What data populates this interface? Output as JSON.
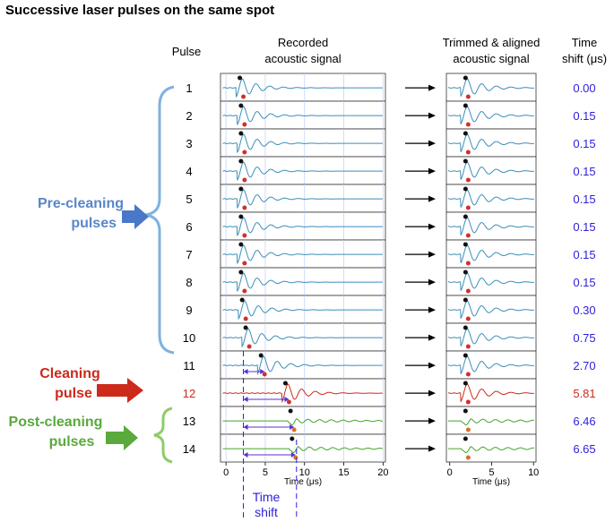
{
  "title": "Successive laser pulses on the same spot",
  "headers": {
    "pulse": "Pulse",
    "recorded_1": "Recorded",
    "recorded_2": "acoustic signal",
    "trimmed_1": "Trimmed & aligned",
    "trimmed_2": "acoustic signal",
    "shift_1": "Time",
    "shift_2": "shift (μs)"
  },
  "groups": {
    "pre_1": "Pre-cleaning",
    "pre_2": "pulses",
    "clean_1": "Cleaning",
    "clean_2": "pulse",
    "post_1": "Post-cleaning",
    "post_2": "pulses"
  },
  "time_shift_label_1": "Time",
  "time_shift_label_2": "shift",
  "axes": {
    "left_xlabel": "Time (μs)",
    "left_ticks": [
      "0",
      "5",
      "10",
      "15",
      "20"
    ],
    "left_xlim": [
      -0.7,
      20.3
    ],
    "right_xlabel": "Time (μs)",
    "right_ticks": [
      "0",
      "5",
      "10"
    ],
    "right_xlim": [
      -0.4,
      10.3
    ]
  },
  "colors": {
    "pre": "#3b8db9",
    "cleaning": "#cc2a1a",
    "post": "#42a52a",
    "shift": "#2a1edc",
    "label_pre": "#5a86c8",
    "label_clean": "#cc2a1a",
    "label_post": "#5aa93c",
    "peak_dark": "#111111",
    "peak_red": "#d03030",
    "peak_orange": "#d5702a"
  },
  "chart_data": {
    "type": "line",
    "xlabel": "Time (μs)",
    "pulses": [
      {
        "label": "1",
        "group": "pre",
        "shift": "0.00",
        "peak_time": 2.1
      },
      {
        "label": "2",
        "group": "pre",
        "shift": "0.15",
        "peak_time": 2.25
      },
      {
        "label": "3",
        "group": "pre",
        "shift": "0.15",
        "peak_time": 2.25
      },
      {
        "label": "4",
        "group": "pre",
        "shift": "0.15",
        "peak_time": 2.25
      },
      {
        "label": "5",
        "group": "pre",
        "shift": "0.15",
        "peak_time": 2.25
      },
      {
        "label": "6",
        "group": "pre",
        "shift": "0.15",
        "peak_time": 2.25
      },
      {
        "label": "7",
        "group": "pre",
        "shift": "0.15",
        "peak_time": 2.25
      },
      {
        "label": "8",
        "group": "pre",
        "shift": "0.15",
        "peak_time": 2.25
      },
      {
        "label": "9",
        "group": "pre",
        "shift": "0.30",
        "peak_time": 2.4
      },
      {
        "label": "10",
        "group": "pre",
        "shift": "0.75",
        "peak_time": 2.85
      },
      {
        "label": "11",
        "group": "pre",
        "shift": "2.70",
        "peak_time": 4.8
      },
      {
        "label": "12",
        "group": "cleaning",
        "shift": "5.81",
        "peak_time": 7.91
      },
      {
        "label": "13",
        "group": "post",
        "shift": "6.46",
        "peak_time": 8.56
      },
      {
        "label": "14",
        "group": "post",
        "shift": "6.65",
        "peak_time": 8.75
      }
    ]
  }
}
